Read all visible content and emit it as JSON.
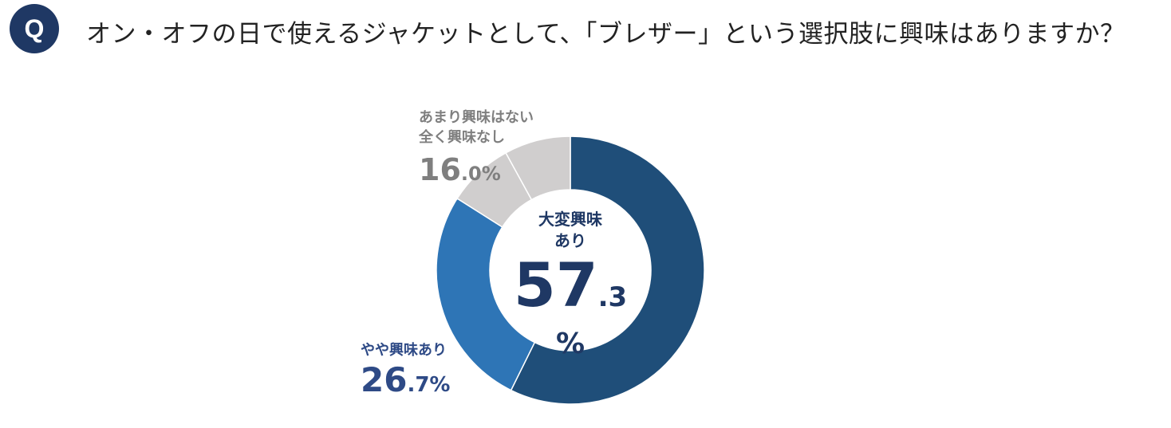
{
  "question": {
    "badge": "Q",
    "text": "オン・オフの日で使えるジャケットとして、「ブレザー」という選択肢に興味はありますか？"
  },
  "chart_data": {
    "type": "pie",
    "variant": "donut",
    "title": "オン・オフの日で使えるジャケットとして、「ブレザー」という選択肢に興味はありますか？",
    "slices": [
      {
        "key": "very",
        "label": "大変興味あり",
        "value": 57.3,
        "color": "#1f4e79"
      },
      {
        "key": "some",
        "label": "やや興味あり",
        "value": 26.7,
        "color": "#2e75b6"
      },
      {
        "key": "not_much",
        "label": "あまり興味はない",
        "value": 8.0,
        "color": "#d0cece"
      },
      {
        "key": "none",
        "label": "全く興味なし",
        "value": 8.0,
        "color": "#d0cece"
      }
    ]
  },
  "labels": {
    "very": {
      "line1": "大変興味",
      "line2": "あり",
      "int": "57",
      "dec": ".3",
      "unit": "%"
    },
    "some": {
      "name": "やや興味あり",
      "int": "26",
      "dec": ".7",
      "unit": "%"
    },
    "none": {
      "line1": "あまり興味はない",
      "line2": "全く興味なし",
      "int": "16",
      "dec": ".0",
      "unit": "%"
    }
  }
}
